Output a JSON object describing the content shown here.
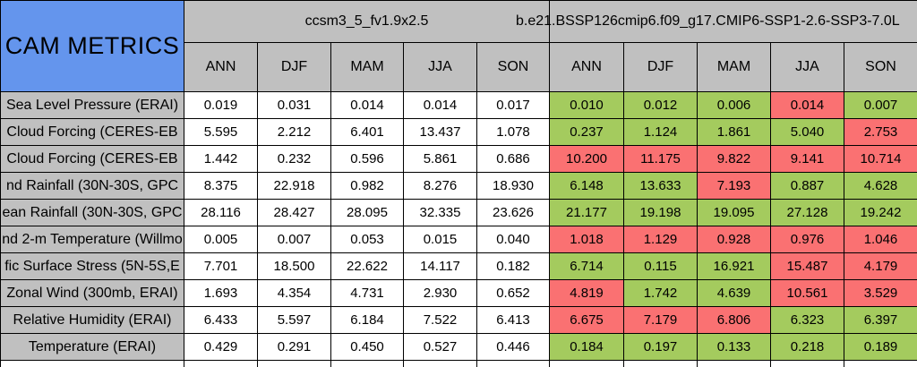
{
  "chart_data": {
    "type": "table",
    "title": "CAM METRICS",
    "column_groups": [
      {
        "title": "ccsm3_5_fv1.9x2.5",
        "seasons": [
          "ANN",
          "DJF",
          "MAM",
          "JJA",
          "SON"
        ]
      },
      {
        "title": "b.e21.BSSP126cmip6.f09_g17.CMIP6-SSP1-2.6-SSP3-7.0L",
        "seasons": [
          "ANN",
          "DJF",
          "MAM",
          "JJA",
          "SON"
        ]
      }
    ],
    "rows": [
      {
        "label": "Sea Level Pressure (ERAI)",
        "group1_values": [
          "0.019",
          "0.031",
          "0.014",
          "0.014",
          "0.017"
        ],
        "group2_values": [
          "0.010",
          "0.012",
          "0.006",
          "0.014",
          "0.007"
        ],
        "group2_status": [
          "good",
          "good",
          "good",
          "bad",
          "good"
        ]
      },
      {
        "label": "Cloud Forcing (CERES-EB",
        "group1_values": [
          "5.595",
          "2.212",
          "6.401",
          "13.437",
          "1.078"
        ],
        "group2_values": [
          "0.237",
          "1.124",
          "1.861",
          "5.040",
          "2.753"
        ],
        "group2_status": [
          "good",
          "good",
          "good",
          "good",
          "bad"
        ]
      },
      {
        "label": "Cloud Forcing (CERES-EB",
        "group1_values": [
          "1.442",
          "0.232",
          "0.596",
          "5.861",
          "0.686"
        ],
        "group2_values": [
          "10.200",
          "11.175",
          "9.822",
          "9.141",
          "10.714"
        ],
        "group2_status": [
          "bad",
          "bad",
          "bad",
          "bad",
          "bad"
        ]
      },
      {
        "label": "nd Rainfall (30N-30S, GPC",
        "group1_values": [
          "8.375",
          "22.918",
          "0.982",
          "8.276",
          "18.930"
        ],
        "group2_values": [
          "6.148",
          "13.633",
          "7.193",
          "0.887",
          "4.628"
        ],
        "group2_status": [
          "good",
          "good",
          "bad",
          "good",
          "good"
        ]
      },
      {
        "label": "ean Rainfall (30N-30S, GPC",
        "group1_values": [
          "28.116",
          "28.427",
          "28.095",
          "32.335",
          "23.626"
        ],
        "group2_values": [
          "21.177",
          "19.198",
          "19.095",
          "27.128",
          "19.242"
        ],
        "group2_status": [
          "good",
          "good",
          "good",
          "good",
          "good"
        ]
      },
      {
        "label": "nd 2-m Temperature (Willmo",
        "group1_values": [
          "0.005",
          "0.007",
          "0.053",
          "0.015",
          "0.040"
        ],
        "group2_values": [
          "1.018",
          "1.129",
          "0.928",
          "0.976",
          "1.046"
        ],
        "group2_status": [
          "bad",
          "bad",
          "bad",
          "bad",
          "bad"
        ]
      },
      {
        "label": "fic Surface Stress (5N-5S,E",
        "group1_values": [
          "7.701",
          "18.500",
          "22.622",
          "14.117",
          "0.182"
        ],
        "group2_values": [
          "6.714",
          "0.115",
          "16.921",
          "15.487",
          "4.179"
        ],
        "group2_status": [
          "good",
          "good",
          "good",
          "bad",
          "bad"
        ]
      },
      {
        "label": "Zonal Wind (300mb, ERAI)",
        "group1_values": [
          "1.693",
          "4.354",
          "4.731",
          "2.930",
          "0.652"
        ],
        "group2_values": [
          "4.819",
          "1.742",
          "4.639",
          "10.561",
          "3.529"
        ],
        "group2_status": [
          "bad",
          "good",
          "good",
          "bad",
          "bad"
        ]
      },
      {
        "label": "Relative Humidity (ERAI)",
        "group1_values": [
          "6.433",
          "5.597",
          "6.184",
          "7.522",
          "6.413"
        ],
        "group2_values": [
          "6.675",
          "7.179",
          "6.806",
          "6.323",
          "6.397"
        ],
        "group2_status": [
          "bad",
          "bad",
          "bad",
          "good",
          "good"
        ]
      },
      {
        "label": "Temperature (ERAI)",
        "group1_values": [
          "0.429",
          "0.291",
          "0.450",
          "0.527",
          "0.446"
        ],
        "group2_values": [
          "0.184",
          "0.197",
          "0.133",
          "0.218",
          "0.189"
        ],
        "group2_status": [
          "good",
          "good",
          "good",
          "good",
          "good"
        ]
      }
    ],
    "layout": {
      "grid": "on",
      "label_column": "left",
      "status_coloring": "group2 cells colored by comparison result"
    }
  },
  "colors": {
    "corner_bg": "#6495ED",
    "header_bg": "#C0C0C0",
    "label_bg": "#C0C0C0",
    "white_cell": "#FFFFFF",
    "good": "#A4CB5E",
    "bad": "#FA7172",
    "border": "#000000"
  }
}
